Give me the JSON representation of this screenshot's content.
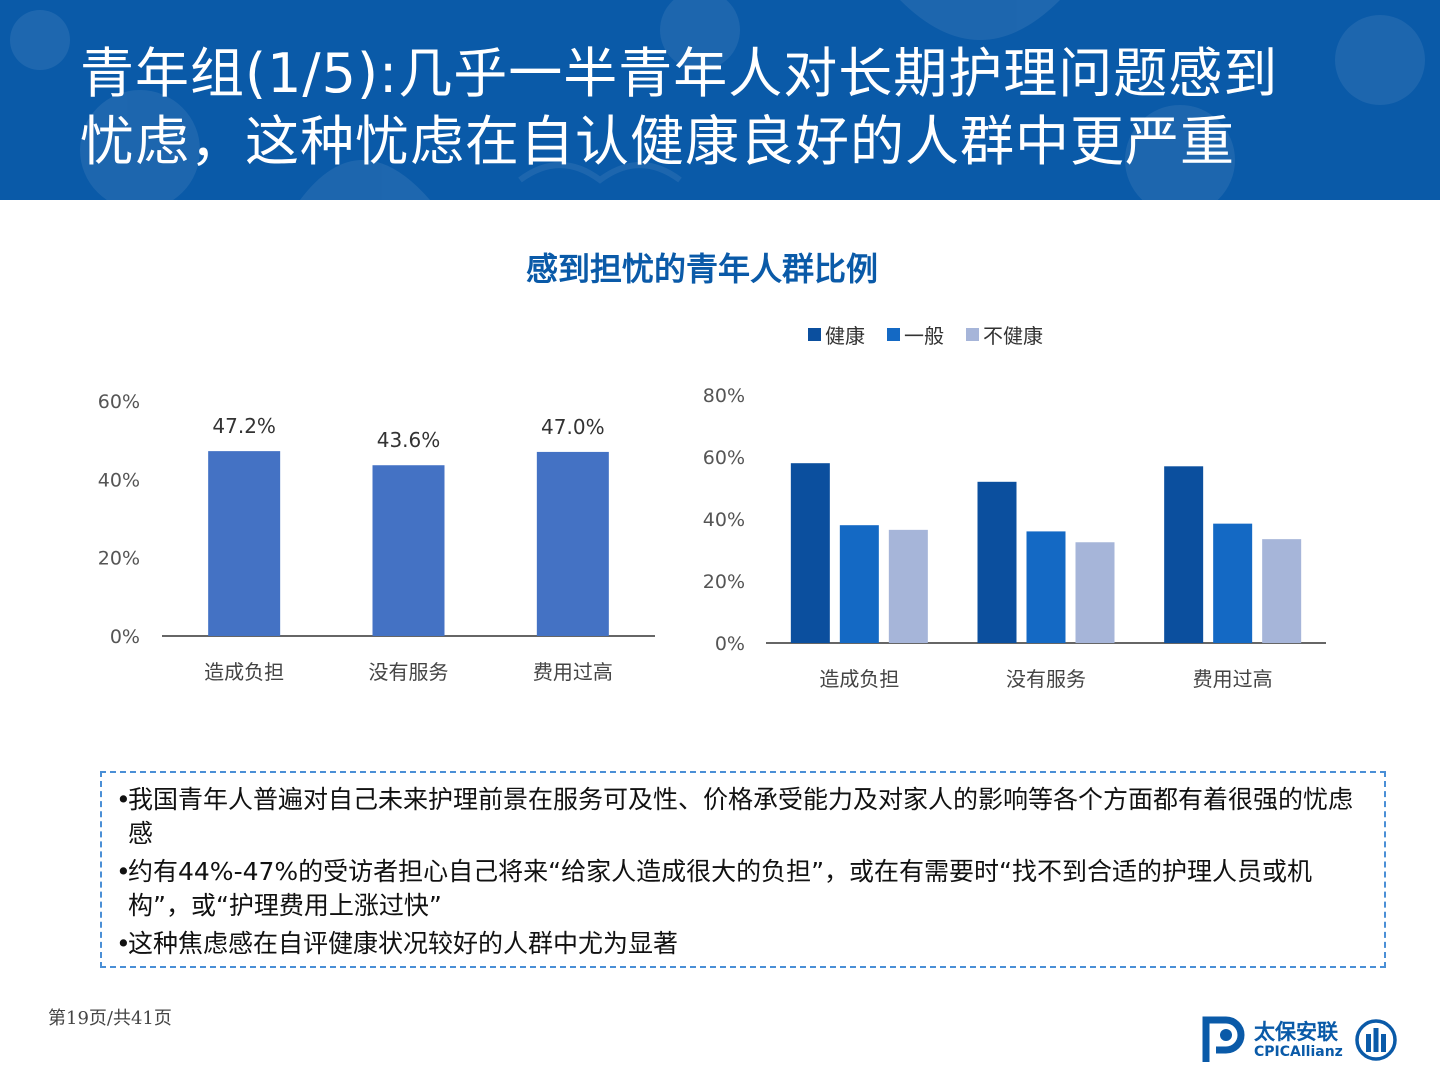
{
  "header": {
    "title_line1": "青年组(1/5):几乎一半青年人对长期护理问题感到",
    "title_line2": "忧虑，这种忧虑在自认健康良好的人群中更严重"
  },
  "chart_title": "感到担忧的青年人群比例",
  "colors": {
    "header_bg": "#0a5aa8",
    "bar_single": "#4472c4",
    "healthy": "#0b4f9e",
    "average": "#1469c4",
    "unhealthy": "#a6b5d9"
  },
  "chart_data": [
    {
      "type": "bar",
      "categories": [
        "造成负担",
        "没有服务",
        "费用过高"
      ],
      "values": [
        47.2,
        43.6,
        47.0
      ],
      "data_labels": [
        "47.2%",
        "43.6%",
        "47.0%"
      ],
      "ylim": [
        0,
        60
      ],
      "yticks": [
        "0%",
        "20%",
        "40%",
        "60%"
      ],
      "grid": false
    },
    {
      "type": "bar",
      "categories": [
        "造成负担",
        "没有服务",
        "费用过高"
      ],
      "series": [
        {
          "name": "健康",
          "values": [
            58,
            52,
            57
          ]
        },
        {
          "name": "一般",
          "values": [
            38,
            36,
            38.5
          ]
        },
        {
          "name": "不健康",
          "values": [
            36.5,
            32.5,
            33.5
          ]
        }
      ],
      "ylim": [
        0,
        80
      ],
      "yticks": [
        "0%",
        "20%",
        "40%",
        "60%",
        "80%"
      ],
      "legend": "top",
      "grid": false
    }
  ],
  "notes": [
    "我国青年人普遍对自己未来护理前景在服务可及性、价格承受能力及对家人的影响等各个方面都有着很强的忧虑感",
    "约有44%-47%的受访者担心自己将来“给家人造成很大的负担”，或在有需要时“找不到合适的护理人员或机构”，或“护理费用上涨过快”",
    "这种焦虑感在自评健康状况较好的人群中尤为显著"
  ],
  "footer": {
    "page": "第19页/共41页",
    "logo_cn": "太保安联",
    "logo_en": "CPICAllianz"
  }
}
